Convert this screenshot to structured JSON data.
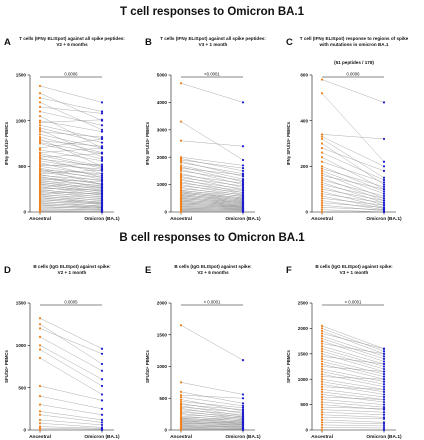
{
  "section_titles": {
    "t_cell": "T cell responses to Omicron BA.1",
    "b_cell": "B cell responses to Omicron BA.1"
  },
  "colors": {
    "ancestral": "#f0821e",
    "omicron": "#1c1ccf",
    "connector": "#8a8a8a"
  },
  "chart_data": [
    {
      "type": "scatter",
      "letter": "A",
      "title": [
        "T cells (IFNγ ELISpot) against all spike peptides:",
        "V2 + 6 months"
      ],
      "ylabel": "IFNγ SFU/10⁶ PBMCs",
      "categories": [
        "Ancestral",
        "Omicron (BA.1)"
      ],
      "ylim": [
        0,
        1500
      ],
      "yticks": [
        0,
        500,
        1000,
        1500
      ],
      "p_value": "0.0006",
      "pairs": [
        [
          1380,
          1200
        ],
        [
          1300,
          1000
        ],
        [
          1250,
          1100
        ],
        [
          1200,
          900
        ],
        [
          1150,
          1080
        ],
        [
          1100,
          950
        ],
        [
          1050,
          700
        ],
        [
          1000,
          880
        ],
        [
          980,
          1010
        ],
        [
          950,
          800
        ],
        [
          920,
          760
        ],
        [
          900,
          600
        ],
        [
          880,
          820
        ],
        [
          850,
          700
        ],
        [
          820,
          650
        ],
        [
          800,
          500
        ],
        [
          780,
          720
        ],
        [
          760,
          640
        ],
        [
          750,
          580
        ],
        [
          700,
          800
        ],
        [
          680,
          560
        ],
        [
          650,
          700
        ],
        [
          640,
          500
        ],
        [
          620,
          480
        ],
        [
          600,
          640
        ],
        [
          590,
          420
        ],
        [
          580,
          500
        ],
        [
          560,
          450
        ],
        [
          540,
          380
        ],
        [
          520,
          470
        ],
        [
          510,
          520
        ],
        [
          500,
          400
        ],
        [
          480,
          360
        ],
        [
          470,
          300
        ],
        [
          460,
          420
        ],
        [
          450,
          380
        ],
        [
          440,
          340
        ],
        [
          420,
          460
        ],
        [
          410,
          300
        ],
        [
          400,
          350
        ],
        [
          390,
          260
        ],
        [
          380,
          310
        ],
        [
          370,
          280
        ],
        [
          360,
          330
        ],
        [
          350,
          240
        ],
        [
          340,
          290
        ],
        [
          330,
          220
        ],
        [
          320,
          270
        ],
        [
          310,
          200
        ],
        [
          300,
          260
        ],
        [
          290,
          230
        ],
        [
          280,
          180
        ],
        [
          270,
          210
        ],
        [
          260,
          240
        ],
        [
          250,
          160
        ],
        [
          240,
          190
        ],
        [
          230,
          140
        ],
        [
          220,
          200
        ],
        [
          210,
          170
        ],
        [
          200,
          120
        ],
        [
          190,
          150
        ],
        [
          180,
          100
        ],
        [
          170,
          130
        ],
        [
          160,
          90
        ],
        [
          150,
          110
        ],
        [
          140,
          80
        ],
        [
          130,
          100
        ],
        [
          120,
          60
        ],
        [
          110,
          90
        ],
        [
          100,
          50
        ],
        [
          90,
          70
        ],
        [
          80,
          40
        ],
        [
          70,
          55
        ],
        [
          60,
          30
        ],
        [
          50,
          45
        ],
        [
          40,
          20
        ],
        [
          30,
          25
        ],
        [
          20,
          10
        ],
        [
          10,
          5
        ],
        [
          0,
          0
        ]
      ]
    },
    {
      "type": "scatter",
      "letter": "B",
      "title": [
        "T cells (IFNγ ELISpot) against all spike peptides:",
        "V3 + 1 month"
      ],
      "ylabel": "IFNγ SFU/10⁶ PBMCs",
      "categories": [
        "Ancestral",
        "Omicron (BA.1)"
      ],
      "ylim": [
        0,
        5000
      ],
      "yticks": [
        0,
        1000,
        2000,
        3000,
        4000,
        5000
      ],
      "p_value": "<0.0001",
      "pairs": [
        [
          4700,
          4000
        ],
        [
          3300,
          1900
        ],
        [
          2600,
          2400
        ],
        [
          2000,
          1700
        ],
        [
          1950,
          1500
        ],
        [
          1900,
          1600
        ],
        [
          1850,
          1300
        ],
        [
          1800,
          1400
        ],
        [
          1700,
          1200
        ],
        [
          1650,
          1100
        ],
        [
          1600,
          1350
        ],
        [
          1550,
          1000
        ],
        [
          1500,
          1150
        ],
        [
          1400,
          900
        ],
        [
          1350,
          1050
        ],
        [
          1300,
          800
        ],
        [
          1250,
          950
        ],
        [
          1200,
          700
        ],
        [
          1150,
          850
        ],
        [
          1100,
          650
        ],
        [
          1050,
          780
        ],
        [
          1000,
          600
        ],
        [
          950,
          720
        ],
        [
          900,
          550
        ],
        [
          850,
          640
        ],
        [
          800,
          500
        ],
        [
          780,
          580
        ],
        [
          750,
          460
        ],
        [
          720,
          520
        ],
        [
          700,
          420
        ],
        [
          680,
          480
        ],
        [
          650,
          380
        ],
        [
          620,
          440
        ],
        [
          600,
          350
        ],
        [
          580,
          400
        ],
        [
          550,
          320
        ],
        [
          520,
          360
        ],
        [
          500,
          280
        ],
        [
          480,
          330
        ],
        [
          450,
          250
        ],
        [
          420,
          300
        ],
        [
          400,
          220
        ],
        [
          380,
          260
        ],
        [
          350,
          200
        ],
        [
          320,
          230
        ],
        [
          300,
          170
        ],
        [
          280,
          200
        ],
        [
          250,
          150
        ],
        [
          220,
          180
        ],
        [
          200,
          120
        ],
        [
          180,
          140
        ],
        [
          150,
          100
        ],
        [
          120,
          110
        ],
        [
          100,
          70
        ],
        [
          80,
          80
        ],
        [
          60,
          40
        ],
        [
          40,
          50
        ],
        [
          20,
          20
        ],
        [
          0,
          0
        ]
      ]
    },
    {
      "type": "scatter",
      "letter": "C",
      "title": [
        "T cell (IFNγ ELISpot) response to regions of spike",
        "with mutations in omicron BA.1"
      ],
      "subtitle": "(51 peptides / 178)",
      "ylabel": "IFNγ SFU/10⁶ PBMCs",
      "categories": [
        "Ancestral",
        "Omicron (BA.1)"
      ],
      "ylim": [
        0,
        600
      ],
      "yticks": [
        0,
        200,
        400,
        600
      ],
      "p_value": "0.0006",
      "pairs": [
        [
          580,
          480
        ],
        [
          520,
          220
        ],
        [
          340,
          320
        ],
        [
          330,
          200
        ],
        [
          320,
          150
        ],
        [
          300,
          120
        ],
        [
          280,
          180
        ],
        [
          260,
          140
        ],
        [
          240,
          100
        ],
        [
          220,
          130
        ],
        [
          200,
          90
        ],
        [
          190,
          110
        ],
        [
          180,
          80
        ],
        [
          170,
          60
        ],
        [
          160,
          100
        ],
        [
          150,
          50
        ],
        [
          140,
          70
        ],
        [
          130,
          40
        ],
        [
          120,
          60
        ],
        [
          110,
          30
        ],
        [
          100,
          50
        ],
        [
          90,
          20
        ],
        [
          80,
          40
        ],
        [
          70,
          15
        ],
        [
          60,
          30
        ],
        [
          50,
          10
        ],
        [
          40,
          20
        ],
        [
          30,
          5
        ],
        [
          20,
          10
        ],
        [
          10,
          0
        ],
        [
          0,
          0
        ]
      ]
    },
    {
      "type": "scatter",
      "letter": "D",
      "title": [
        "B cells (IgG ELISpot) against spike:",
        "V2 + 1 month"
      ],
      "ylabel": "SFU/10⁶ PBMCs",
      "categories": [
        "Ancestral",
        "Omicron (BA.1)"
      ],
      "ylim": [
        0,
        1500
      ],
      "yticks": [
        0,
        500,
        1000,
        1500
      ],
      "p_value": "0.0005",
      "pairs": [
        [
          1320,
          960
        ],
        [
          1250,
          780
        ],
        [
          1200,
          900
        ],
        [
          1100,
          700
        ],
        [
          1000,
          600
        ],
        [
          950,
          520
        ],
        [
          850,
          420
        ],
        [
          520,
          350
        ],
        [
          400,
          250
        ],
        [
          300,
          180
        ],
        [
          220,
          120
        ],
        [
          180,
          90
        ],
        [
          120,
          60
        ],
        [
          80,
          30
        ],
        [
          40,
          20
        ],
        [
          20,
          10
        ],
        [
          0,
          0
        ]
      ]
    },
    {
      "type": "scatter",
      "letter": "E",
      "title": [
        "B cells (IgG ELISpot) against spike:",
        "V2 + 6 months"
      ],
      "ylabel": "SFU/10⁶ PBMCs",
      "categories": [
        "Ancestral",
        "Omicron (BA.1)"
      ],
      "ylim": [
        0,
        2000
      ],
      "yticks": [
        0,
        500,
        1000,
        1500,
        2000
      ],
      "p_value": "< 0.0001",
      "pairs": [
        [
          1650,
          1100
        ],
        [
          750,
          560
        ],
        [
          600,
          420
        ],
        [
          550,
          500
        ],
        [
          520,
          380
        ],
        [
          480,
          300
        ],
        [
          450,
          350
        ],
        [
          420,
          260
        ],
        [
          400,
          320
        ],
        [
          380,
          220
        ],
        [
          360,
          280
        ],
        [
          340,
          200
        ],
        [
          320,
          240
        ],
        [
          300,
          180
        ],
        [
          280,
          210
        ],
        [
          260,
          160
        ],
        [
          240,
          190
        ],
        [
          220,
          140
        ],
        [
          200,
          170
        ],
        [
          190,
          120
        ],
        [
          180,
          150
        ],
        [
          170,
          110
        ],
        [
          160,
          130
        ],
        [
          150,
          100
        ],
        [
          140,
          90
        ],
        [
          130,
          110
        ],
        [
          120,
          80
        ],
        [
          110,
          70
        ],
        [
          100,
          90
        ],
        [
          90,
          60
        ],
        [
          80,
          50
        ],
        [
          70,
          40
        ],
        [
          60,
          50
        ],
        [
          50,
          30
        ],
        [
          40,
          20
        ],
        [
          30,
          25
        ],
        [
          20,
          10
        ],
        [
          10,
          5
        ],
        [
          0,
          0
        ]
      ]
    },
    {
      "type": "scatter",
      "letter": "F",
      "title": [
        "B cells (IgG ELISpot) against spike:",
        "V3 + 1 month"
      ],
      "ylabel": "SFU/10⁶ PBMCs",
      "categories": [
        "Ancestral",
        "Omicron (BA.1)"
      ],
      "ylim": [
        0,
        2500
      ],
      "yticks": [
        0,
        500,
        1000,
        1500,
        2000,
        2500
      ],
      "p_value": "< 0.0001",
      "pairs": [
        [
          2050,
          1600
        ],
        [
          2000,
          1550
        ],
        [
          1950,
          1500
        ],
        [
          1900,
          1600
        ],
        [
          1850,
          1450
        ],
        [
          1800,
          1400
        ],
        [
          1750,
          1350
        ],
        [
          1700,
          1500
        ],
        [
          1650,
          1300
        ],
        [
          1600,
          1250
        ],
        [
          1550,
          1200
        ],
        [
          1500,
          1150
        ],
        [
          1450,
          1300
        ],
        [
          1400,
          1100
        ],
        [
          1350,
          1050
        ],
        [
          1300,
          1000
        ],
        [
          1250,
          1150
        ],
        [
          1200,
          950
        ],
        [
          1150,
          900
        ],
        [
          1100,
          850
        ],
        [
          1050,
          1000
        ],
        [
          1000,
          800
        ],
        [
          950,
          750
        ],
        [
          900,
          700
        ],
        [
          850,
          800
        ],
        [
          800,
          650
        ],
        [
          750,
          600
        ],
        [
          700,
          550
        ],
        [
          650,
          600
        ],
        [
          600,
          500
        ],
        [
          550,
          450
        ],
        [
          500,
          400
        ],
        [
          450,
          420
        ],
        [
          400,
          350
        ],
        [
          350,
          300
        ],
        [
          300,
          250
        ],
        [
          250,
          220
        ],
        [
          200,
          150
        ],
        [
          150,
          120
        ],
        [
          100,
          80
        ],
        [
          50,
          40
        ],
        [
          0,
          0
        ]
      ]
    }
  ]
}
